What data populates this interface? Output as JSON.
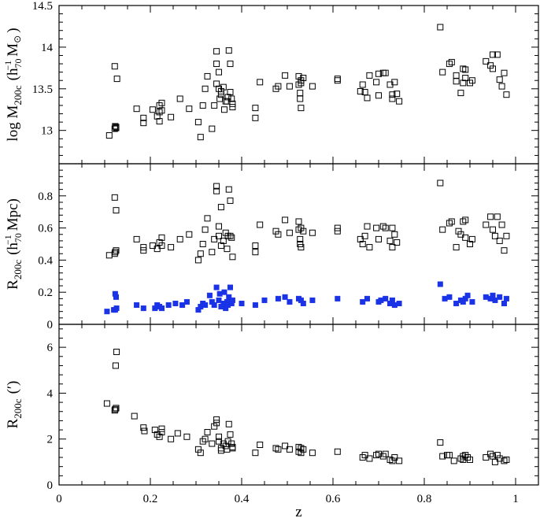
{
  "chart_data": [
    {
      "type": "scatter",
      "ylabel": "log M200c (h70^-1 M☉)",
      "ylabel_parts": {
        "main": "log M",
        "sub": "200c",
        "paren_open": "(h",
        "h_sub": "70",
        "h_sup": "−1",
        "tail": "M",
        "sym": "⊙",
        "paren_close": ")"
      },
      "xlim": [
        0,
        1.05
      ],
      "ylim": [
        12.6,
        14.5
      ],
      "yticks": [
        13,
        13.5,
        14,
        14.5
      ],
      "ytick_labels": [
        "13",
        "13.5",
        "14",
        "14.5"
      ],
      "series": [
        {
          "marker": "open-square",
          "color": "#000000",
          "x": [
            0.11,
            0.122,
            0.123,
            0.125,
            0.125,
            0.122,
            0.127,
            0.17,
            0.185,
            0.185,
            0.205,
            0.215,
            0.22,
            0.22,
            0.22,
            0.225,
            0.225,
            0.245,
            0.265,
            0.285,
            0.305,
            0.31,
            0.315,
            0.32,
            0.325,
            0.335,
            0.34,
            0.345,
            0.345,
            0.345,
            0.35,
            0.35,
            0.352,
            0.355,
            0.355,
            0.36,
            0.362,
            0.365,
            0.368,
            0.37,
            0.372,
            0.375,
            0.375,
            0.378,
            0.38,
            0.38,
            0.43,
            0.43,
            0.44,
            0.475,
            0.48,
            0.495,
            0.505,
            0.525,
            0.525,
            0.528,
            0.528,
            0.53,
            0.53,
            0.53,
            0.535,
            0.555,
            0.61,
            0.61,
            0.66,
            0.665,
            0.67,
            0.675,
            0.68,
            0.695,
            0.7,
            0.7,
            0.71,
            0.715,
            0.725,
            0.73,
            0.73,
            0.735,
            0.74,
            0.745,
            0.835,
            0.84,
            0.855,
            0.86,
            0.87,
            0.87,
            0.88,
            0.885,
            0.885,
            0.89,
            0.89,
            0.9,
            0.905,
            0.935,
            0.945,
            0.95,
            0.95,
            0.96,
            0.965,
            0.97,
            0.975,
            0.98
          ],
          "y": [
            12.94,
            13.02,
            13.05,
            13.04,
            13.03,
            13.77,
            13.62,
            13.26,
            13.15,
            13.09,
            13.25,
            13.17,
            13.22,
            13.11,
            13.3,
            13.33,
            13.24,
            13.16,
            13.38,
            13.26,
            13.1,
            12.92,
            13.3,
            13.5,
            13.65,
            13.02,
            13.3,
            13.56,
            13.95,
            13.8,
            13.5,
            13.7,
            13.38,
            13.47,
            13.43,
            13.52,
            13.25,
            13.35,
            13.35,
            13.4,
            13.96,
            13.8,
            13.46,
            13.38,
            13.32,
            13.28,
            13.27,
            13.15,
            13.58,
            13.5,
            13.53,
            13.66,
            13.53,
            13.65,
            13.55,
            13.45,
            13.38,
            13.57,
            13.6,
            13.27,
            13.63,
            13.53,
            13.62,
            13.6,
            13.47,
            13.55,
            13.46,
            13.39,
            13.66,
            13.58,
            13.68,
            13.42,
            13.69,
            13.69,
            13.55,
            13.43,
            13.38,
            13.58,
            13.44,
            13.35,
            14.24,
            13.7,
            13.8,
            13.82,
            13.66,
            13.59,
            13.45,
            13.74,
            13.57,
            13.73,
            13.63,
            13.57,
            13.6,
            13.83,
            13.78,
            13.91,
            13.74,
            13.91,
            13.61,
            13.53,
            13.69,
            13.43
          ]
        }
      ]
    },
    {
      "type": "scatter",
      "ylabel": "R200c (h70^-1 Mpc)",
      "ylabel_parts": {
        "main": "R",
        "sub": "200c",
        "paren_open": "(h",
        "h_sub": "70",
        "h_sup": "−1",
        "tail": "Mpc)"
      },
      "xlim": [
        0,
        1.05
      ],
      "ylim": [
        0,
        1.0
      ],
      "yticks": [
        0,
        0.2,
        0.4,
        0.6,
        0.8
      ],
      "ytick_labels": [
        "0",
        "0.2",
        "0.4",
        "0.6",
        "0.8"
      ],
      "series": [
        {
          "marker": "open-square",
          "color": "#000000",
          "x": [
            0.11,
            0.122,
            0.123,
            0.125,
            0.122,
            0.125,
            0.17,
            0.185,
            0.185,
            0.205,
            0.215,
            0.22,
            0.225,
            0.225,
            0.245,
            0.265,
            0.285,
            0.305,
            0.31,
            0.315,
            0.32,
            0.325,
            0.335,
            0.34,
            0.345,
            0.345,
            0.35,
            0.35,
            0.355,
            0.355,
            0.36,
            0.365,
            0.368,
            0.37,
            0.372,
            0.375,
            0.375,
            0.378,
            0.38,
            0.43,
            0.43,
            0.44,
            0.475,
            0.48,
            0.495,
            0.505,
            0.525,
            0.525,
            0.528,
            0.528,
            0.53,
            0.53,
            0.535,
            0.555,
            0.61,
            0.61,
            0.66,
            0.665,
            0.67,
            0.675,
            0.68,
            0.695,
            0.7,
            0.71,
            0.715,
            0.725,
            0.73,
            0.73,
            0.735,
            0.74,
            0.835,
            0.84,
            0.855,
            0.86,
            0.87,
            0.875,
            0.88,
            0.885,
            0.89,
            0.89,
            0.9,
            0.905,
            0.935,
            0.945,
            0.95,
            0.955,
            0.96,
            0.965,
            0.97,
            0.975,
            0.98
          ],
          "y": [
            0.43,
            0.44,
            0.45,
            0.46,
            0.79,
            0.71,
            0.53,
            0.48,
            0.46,
            0.49,
            0.47,
            0.51,
            0.54,
            0.49,
            0.48,
            0.53,
            0.56,
            0.4,
            0.44,
            0.5,
            0.59,
            0.66,
            0.45,
            0.53,
            0.86,
            0.83,
            0.55,
            0.61,
            0.73,
            0.49,
            0.52,
            0.57,
            0.47,
            0.55,
            0.84,
            0.77,
            0.55,
            0.54,
            0.42,
            0.49,
            0.45,
            0.62,
            0.58,
            0.56,
            0.65,
            0.57,
            0.64,
            0.59,
            0.53,
            0.5,
            0.6,
            0.48,
            0.58,
            0.57,
            0.6,
            0.58,
            0.53,
            0.5,
            0.55,
            0.61,
            0.48,
            0.6,
            0.53,
            0.61,
            0.6,
            0.52,
            0.48,
            0.6,
            0.56,
            0.51,
            0.88,
            0.59,
            0.63,
            0.64,
            0.48,
            0.58,
            0.56,
            0.64,
            0.54,
            0.65,
            0.5,
            0.53,
            0.62,
            0.67,
            0.59,
            0.55,
            0.67,
            0.52,
            0.62,
            0.46,
            0.55
          ]
        },
        {
          "marker": "filled-square",
          "color": "#1a33e6",
          "x": [
            0.105,
            0.12,
            0.123,
            0.126,
            0.123,
            0.125,
            0.17,
            0.185,
            0.21,
            0.215,
            0.22,
            0.225,
            0.24,
            0.255,
            0.27,
            0.28,
            0.305,
            0.31,
            0.315,
            0.32,
            0.33,
            0.335,
            0.34,
            0.345,
            0.35,
            0.352,
            0.355,
            0.36,
            0.362,
            0.365,
            0.368,
            0.37,
            0.372,
            0.375,
            0.378,
            0.38,
            0.4,
            0.43,
            0.45,
            0.48,
            0.495,
            0.505,
            0.525,
            0.53,
            0.535,
            0.555,
            0.61,
            0.665,
            0.675,
            0.7,
            0.705,
            0.715,
            0.725,
            0.73,
            0.735,
            0.745,
            0.835,
            0.845,
            0.855,
            0.87,
            0.88,
            0.885,
            0.89,
            0.895,
            0.905,
            0.935,
            0.945,
            0.95,
            0.955,
            0.965,
            0.975,
            0.98
          ],
          "y": [
            0.08,
            0.09,
            0.09,
            0.1,
            0.19,
            0.17,
            0.12,
            0.1,
            0.1,
            0.12,
            0.11,
            0.1,
            0.12,
            0.13,
            0.12,
            0.14,
            0.09,
            0.11,
            0.13,
            0.12,
            0.18,
            0.14,
            0.12,
            0.23,
            0.15,
            0.19,
            0.11,
            0.13,
            0.2,
            0.1,
            0.14,
            0.12,
            0.17,
            0.23,
            0.13,
            0.15,
            0.13,
            0.12,
            0.15,
            0.16,
            0.17,
            0.14,
            0.16,
            0.15,
            0.13,
            0.15,
            0.16,
            0.14,
            0.16,
            0.14,
            0.15,
            0.16,
            0.13,
            0.15,
            0.12,
            0.13,
            0.25,
            0.16,
            0.17,
            0.13,
            0.15,
            0.14,
            0.16,
            0.18,
            0.14,
            0.17,
            0.16,
            0.18,
            0.15,
            0.17,
            0.13,
            0.16
          ]
        }
      ]
    },
    {
      "type": "scatter",
      "ylabel": "R200c (′)",
      "ylabel_parts": {
        "main": "R",
        "sub": "200c",
        "paren_open": "(′)"
      },
      "xlabel": "z",
      "xlim": [
        0,
        1.05
      ],
      "ylim": [
        0,
        7
      ],
      "xticks": [
        0,
        0.2,
        0.4,
        0.6,
        0.8,
        1
      ],
      "xtick_labels": [
        "0",
        "0.2",
        "0.4",
        "0.6",
        "0.8",
        "1"
      ],
      "yticks": [
        0,
        2,
        4,
        6
      ],
      "ytick_labels": [
        "0",
        "2",
        "4",
        "6"
      ],
      "series": [
        {
          "marker": "open-square",
          "color": "#000000",
          "x": [
            0.105,
            0.122,
            0.123,
            0.125,
            0.126,
            0.124,
            0.165,
            0.185,
            0.187,
            0.21,
            0.215,
            0.22,
            0.225,
            0.225,
            0.245,
            0.26,
            0.28,
            0.305,
            0.31,
            0.315,
            0.32,
            0.325,
            0.335,
            0.34,
            0.345,
            0.345,
            0.35,
            0.35,
            0.355,
            0.355,
            0.36,
            0.365,
            0.368,
            0.37,
            0.372,
            0.375,
            0.378,
            0.38,
            0.38,
            0.43,
            0.44,
            0.475,
            0.48,
            0.495,
            0.505,
            0.525,
            0.525,
            0.53,
            0.53,
            0.535,
            0.555,
            0.61,
            0.665,
            0.67,
            0.68,
            0.695,
            0.7,
            0.71,
            0.715,
            0.725,
            0.73,
            0.735,
            0.745,
            0.835,
            0.84,
            0.85,
            0.855,
            0.865,
            0.88,
            0.885,
            0.885,
            0.89,
            0.895,
            0.9,
            0.935,
            0.945,
            0.95,
            0.955,
            0.96,
            0.965,
            0.975,
            0.98
          ],
          "y": [
            3.55,
            3.25,
            3.3,
            3.35,
            5.8,
            5.2,
            3.0,
            2.5,
            2.35,
            2.4,
            2.2,
            2.1,
            2.45,
            2.3,
            2.0,
            2.25,
            2.1,
            1.55,
            1.4,
            1.9,
            2.0,
            2.3,
            1.8,
            2.55,
            2.85,
            2.7,
            1.9,
            2.1,
            1.6,
            1.5,
            1.8,
            1.7,
            1.55,
            1.9,
            2.65,
            2.2,
            1.8,
            1.6,
            1.65,
            1.4,
            1.75,
            1.6,
            1.55,
            1.7,
            1.55,
            1.65,
            1.45,
            1.6,
            1.4,
            1.55,
            1.4,
            1.45,
            1.2,
            1.3,
            1.15,
            1.3,
            1.35,
            1.25,
            1.35,
            1.1,
            1.05,
            1.2,
            1.05,
            1.85,
            1.25,
            1.3,
            1.3,
            1.05,
            1.15,
            1.25,
            1.1,
            1.3,
            1.2,
            1.1,
            1.2,
            1.35,
            1.25,
            1.0,
            1.3,
            1.15,
            1.05,
            1.1
          ]
        }
      ]
    }
  ]
}
